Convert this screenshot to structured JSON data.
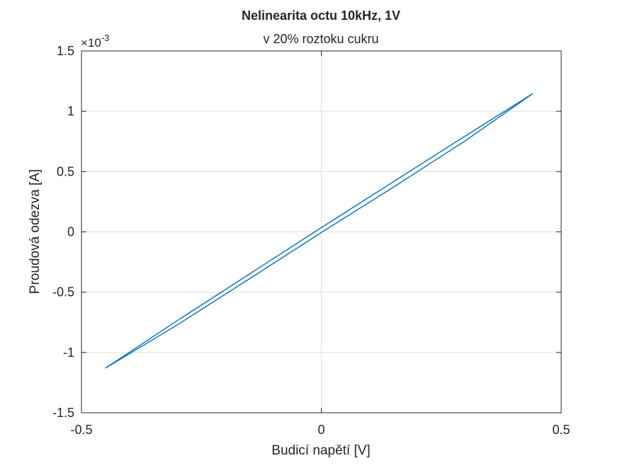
{
  "chart_data": {
    "type": "line",
    "title": "Nelinearita octu 10kHz, 1V",
    "subtitle": "v 20% roztoku cukru",
    "xlabel": "Budicí napětí [V]",
    "ylabel": "Proudová odezva [A]",
    "y_exponent_label": "×10",
    "y_exponent_power": "-3",
    "xlim": [
      -0.5,
      0.5
    ],
    "ylim": [
      -1.5,
      1.5
    ],
    "x_ticks": [
      -0.5,
      0,
      0.5
    ],
    "x_tick_labels": [
      "-0.5",
      "0",
      "0.5"
    ],
    "y_ticks": [
      -1.5,
      -1,
      -0.5,
      0,
      0.5,
      1,
      1.5
    ],
    "y_tick_labels": [
      "-1.5",
      "-1",
      "-0.5",
      "0",
      "0.5",
      "1",
      "1.5"
    ],
    "grid": true,
    "series": [
      {
        "name": "hysteresis-loop",
        "color": "#0072BD",
        "x": [
          -0.45,
          -0.3,
          -0.15,
          0.0,
          0.15,
          0.3,
          0.44,
          0.3,
          0.15,
          0.0,
          -0.15,
          -0.3,
          -0.45
        ],
        "y": [
          -1.13,
          -0.77,
          -0.39,
          -0.005,
          0.37,
          0.755,
          1.145,
          0.795,
          0.415,
          0.035,
          -0.35,
          -0.735,
          -1.13
        ]
      }
    ]
  }
}
